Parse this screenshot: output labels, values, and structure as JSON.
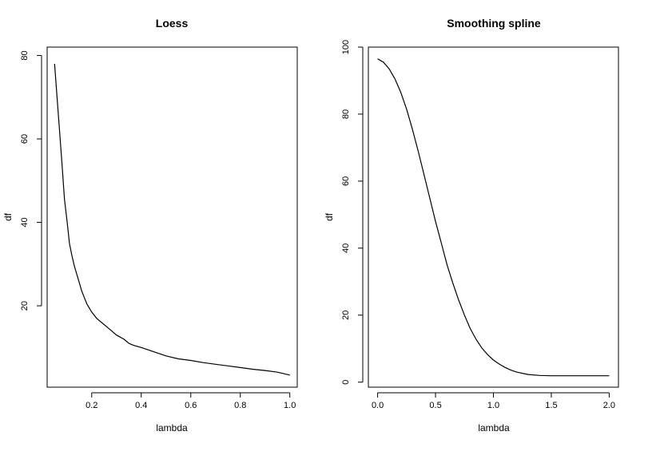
{
  "chart_data": [
    {
      "type": "line",
      "title": "Loess",
      "xlabel": "lambda",
      "ylabel": "df",
      "xlim": [
        0.02,
        1.03
      ],
      "ylim": [
        0.5,
        82
      ],
      "xticks": [
        0.2,
        0.4,
        0.6,
        0.8,
        1.0
      ],
      "xtick_labels": [
        "0.2",
        "0.4",
        "0.6",
        "0.8",
        "1.0"
      ],
      "yticks": [
        20,
        40,
        60,
        80
      ],
      "ytick_labels": [
        "20",
        "40",
        "60",
        "80"
      ],
      "series": [
        {
          "x": [
            0.05,
            0.06,
            0.07,
            0.08,
            0.09,
            0.1,
            0.11,
            0.12,
            0.13,
            0.14,
            0.15,
            0.16,
            0.18,
            0.2,
            0.22,
            0.25,
            0.28,
            0.3,
            0.33,
            0.35,
            0.37,
            0.4,
            0.45,
            0.5,
            0.55,
            0.6,
            0.65,
            0.7,
            0.75,
            0.8,
            0.85,
            0.9,
            0.95,
            1.0
          ],
          "y": [
            78,
            70,
            62,
            54,
            45.5,
            40.5,
            35,
            32,
            29.5,
            27.5,
            25.5,
            23.5,
            20.5,
            18.5,
            17,
            15.5,
            14,
            13,
            12,
            11,
            10.5,
            10,
            9,
            8,
            7.3,
            6.9,
            6.4,
            6.0,
            5.6,
            5.2,
            4.8,
            4.5,
            4.1,
            3.4
          ]
        }
      ]
    },
    {
      "type": "line",
      "title": "Smoothing spline",
      "xlabel": "lambda",
      "ylabel": "df",
      "xlim": [
        -0.08,
        2.08
      ],
      "ylim": [
        -1.5,
        100
      ],
      "xticks": [
        0.0,
        0.5,
        1.0,
        1.5,
        2.0
      ],
      "xtick_labels": [
        "0.0",
        "0.5",
        "1.0",
        "1.5",
        "2.0"
      ],
      "yticks": [
        0,
        20,
        40,
        60,
        80,
        100
      ],
      "ytick_labels": [
        "0",
        "20",
        "40",
        "60",
        "80",
        "100"
      ],
      "series": [
        {
          "x": [
            0.0,
            0.05,
            0.1,
            0.15,
            0.2,
            0.25,
            0.3,
            0.35,
            0.4,
            0.45,
            0.5,
            0.55,
            0.6,
            0.65,
            0.7,
            0.75,
            0.8,
            0.85,
            0.9,
            0.95,
            1.0,
            1.05,
            1.1,
            1.15,
            1.2,
            1.3,
            1.4,
            1.5,
            1.6,
            1.7,
            1.8,
            1.9,
            2.0
          ],
          "y": [
            96.5,
            95.5,
            93.5,
            90.5,
            86.5,
            81.5,
            75.5,
            69,
            62,
            55,
            48,
            41.5,
            35,
            29.5,
            24.5,
            20,
            16,
            12.8,
            10.2,
            8.2,
            6.6,
            5.4,
            4.4,
            3.6,
            3.0,
            2.3,
            2.0,
            1.9,
            1.9,
            1.9,
            1.9,
            1.9,
            1.9
          ]
        }
      ]
    }
  ]
}
